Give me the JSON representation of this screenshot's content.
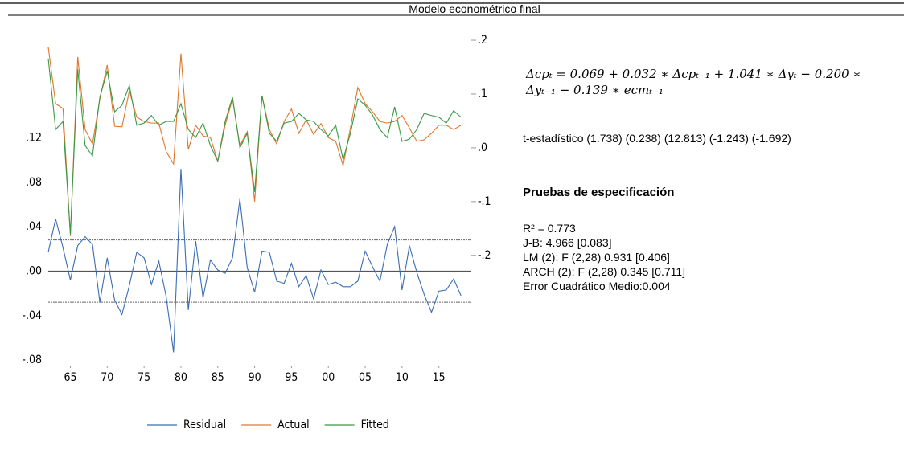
{
  "chart_data": {
    "type": "line",
    "title": "Modelo econométrico final",
    "x": [
      1962,
      1963,
      1964,
      1965,
      1966,
      1967,
      1968,
      1969,
      1970,
      1971,
      1972,
      1973,
      1974,
      1975,
      1976,
      1977,
      1978,
      1979,
      1980,
      1981,
      1982,
      1983,
      1984,
      1985,
      1986,
      1987,
      1988,
      1989,
      1990,
      1991,
      1992,
      1993,
      1994,
      1995,
      1996,
      1997,
      1998,
      1999,
      2000,
      2001,
      2002,
      2003,
      2004,
      2005,
      2006,
      2007,
      2008,
      2009,
      2010,
      2011,
      2012,
      2013,
      2014,
      2015,
      2016,
      2017,
      2018
    ],
    "xlim": [
      1962,
      2019.4
    ],
    "xticks": [
      {
        "value": 1965,
        "label": "65"
      },
      {
        "value": 1970,
        "label": "70"
      },
      {
        "value": 1975,
        "label": "75"
      },
      {
        "value": 1980,
        "label": "80"
      },
      {
        "value": 1985,
        "label": "85"
      },
      {
        "value": 1990,
        "label": "90"
      },
      {
        "value": 1995,
        "label": "95"
      },
      {
        "value": 2000,
        "label": "00"
      },
      {
        "value": 2005,
        "label": "05"
      },
      {
        "value": 2010,
        "label": "10"
      },
      {
        "value": 2015,
        "label": "15"
      }
    ],
    "ylim": [
      -0.085,
      0.215
    ],
    "yticks": [
      {
        "value": 0.12,
        "label": ".12"
      },
      {
        "value": 0.08,
        "label": ".08"
      },
      {
        "value": 0.04,
        "label": ".04"
      },
      {
        "value": 0,
        "label": ".00"
      },
      {
        "value": -0.04,
        "label": "-.04"
      },
      {
        "value": -0.08,
        "label": "-.08"
      }
    ],
    "y2lim": [
      -0.405,
      0.215
    ],
    "y2ticks": [
      {
        "value": 0.2,
        "label": ".2"
      },
      {
        "value": 0.1,
        "label": ".1"
      },
      {
        "value": 0,
        "label": ".0"
      },
      {
        "value": -0.1,
        "label": "-.1"
      },
      {
        "value": -0.2,
        "label": "-.2"
      }
    ],
    "residual_band": [
      -0.028,
      0.028
    ],
    "legend": "bottom",
    "series": [
      {
        "name": "Residual",
        "color": "#3b6db3",
        "axis": "y",
        "values": [
          0.017,
          0.047,
          0.021,
          -0.008,
          0.023,
          0.031,
          0.024,
          -0.028,
          0.012,
          -0.026,
          -0.039,
          -0.013,
          0.017,
          0.012,
          -0.012,
          0.009,
          -0.023,
          -0.073,
          0.092,
          -0.035,
          0.027,
          -0.024,
          0.01,
          0.001,
          -0.002,
          0.012,
          0.065,
          0.003,
          -0.019,
          0.018,
          0.017,
          -0.009,
          -0.011,
          0.007,
          -0.014,
          -0.004,
          -0.025,
          0.001,
          -0.012,
          -0.01,
          -0.014,
          -0.014,
          -0.009,
          0.018,
          0.004,
          -0.009,
          0.024,
          0.04,
          -0.017,
          0.023,
          -0.001,
          -0.021,
          -0.037,
          -0.018,
          -0.017,
          -0.007,
          -0.022
        ]
      },
      {
        "name": "Actual",
        "color": "#e0762b",
        "axis": "y2",
        "values": [
          0.187,
          0.082,
          0.073,
          -0.164,
          0.169,
          0.034,
          0.007,
          0.091,
          0.154,
          0.04,
          0.039,
          0.106,
          0.057,
          0.049,
          0.046,
          0.046,
          -0.007,
          -0.03,
          0.175,
          -0.003,
          0.042,
          0.022,
          0.019,
          -0.025,
          0.042,
          0.091,
          0.004,
          0.03,
          -0.1,
          0.097,
          0.034,
          0.007,
          0.049,
          0.072,
          0.027,
          0.052,
          0.025,
          0.045,
          0.019,
          0.012,
          -0.033,
          0.037,
          0.112,
          0.082,
          0.067,
          0.049,
          0.046,
          0.049,
          0.06,
          0.037,
          0.012,
          0.015,
          0.027,
          0.042,
          0.042,
          0.034,
          0.042
        ]
      },
      {
        "name": "Fitted",
        "color": "#3a9a47",
        "axis": "y2",
        "values": [
          0.166,
          0.034,
          0.049,
          -0.16,
          0.146,
          0.004,
          -0.015,
          0.094,
          0.143,
          0.067,
          0.079,
          0.116,
          0.042,
          0.046,
          0.06,
          0.042,
          0.049,
          0.049,
          0.082,
          0.034,
          0.019,
          0.046,
          0.004,
          -0.025,
          0.049,
          0.094,
          0.0,
          0.027,
          -0.082,
          0.097,
          0.027,
          0.012,
          0.046,
          0.049,
          0.064,
          0.052,
          0.049,
          0.034,
          0.022,
          0.042,
          -0.022,
          0.027,
          0.091,
          0.079,
          0.061,
          0.034,
          0.019,
          0.076,
          0.012,
          0.016,
          0.034,
          0.064,
          0.06,
          0.057,
          0.046,
          0.069,
          0.057
        ]
      }
    ]
  },
  "statistics": {
    "equation": [
      "Δcpₜ = 0.069 + 0.032 ∗ Δcpₜ₋₁ + 1.041 ∗ Δyₜ − 0.200 ∗",
      "Δyₜ₋₁ − 0.139 ∗ ecmₜ₋₁"
    ],
    "t_statistics": "t-estadístico (1.738) (0.238)  (12.813) (-1.243) (-1.692)",
    "heading": "Pruebas de especificación",
    "tests": [
      "R² = 0.773",
      "J-B: 4.966 [0.083]",
      "LM (2): F (2,28) 0.931 [0.406]",
      "ARCH (2): F (2,28) 0.345 [0.711]",
      "Error Cuadrático Medio:0.004"
    ]
  }
}
